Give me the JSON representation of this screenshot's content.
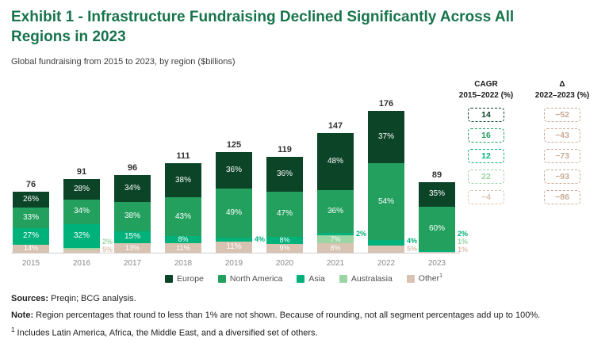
{
  "title": "Exhibit 1 - Infrastructure Fundraising Declined Significantly Across All Regions in 2023",
  "subtitle": "Global fundraising from 2015 to 2023, by region ($billions)",
  "colors": {
    "title": "#17744b",
    "regions": {
      "Europe": "#0c4427",
      "North America": "#23a05e",
      "Asia": "#00b17a",
      "Australasia": "#9cd4a4",
      "Other": "#d8c3b2"
    },
    "delta": "#c9ab97",
    "baseline": "#cfcfcf",
    "total_label": "#333333",
    "axis_label": "#8a8a8a"
  },
  "chart_data": {
    "type": "bar",
    "stacked": true,
    "title": "Global fundraising from 2015 to 2023, by region ($billions)",
    "unit": "$billions",
    "gridlines": false,
    "legend_position": "bottom",
    "categories": [
      "2015",
      "2016",
      "2017",
      "2018",
      "2019",
      "2020",
      "2021",
      "2022",
      "2023"
    ],
    "totals": [
      76,
      91,
      96,
      111,
      125,
      119,
      147,
      176,
      89
    ],
    "series": [
      {
        "name": "Europe",
        "pct_by_year": [
          26,
          28,
          34,
          38,
          36,
          36,
          48,
          37,
          35
        ]
      },
      {
        "name": "North America",
        "pct_by_year": [
          33,
          34,
          38,
          43,
          49,
          47,
          36,
          54,
          60
        ]
      },
      {
        "name": "Asia",
        "pct_by_year": [
          27,
          32,
          15,
          8,
          4,
          8,
          2,
          4,
          2
        ]
      },
      {
        "name": "Australasia",
        "pct_by_year": [
          0,
          2,
          0,
          0,
          0,
          0,
          7,
          0,
          1
        ]
      },
      {
        "name": "Other",
        "pct_by_year": [
          14,
          5,
          13,
          11,
          11,
          9,
          8,
          5,
          1
        ]
      }
    ],
    "bars": [
      {
        "year": "2015",
        "total": 76,
        "segments": [
          {
            "region": "Europe",
            "pct": 26,
            "inside": true
          },
          {
            "region": "North America",
            "pct": 33,
            "inside": true
          },
          {
            "region": "Asia",
            "pct": 27,
            "inside": true
          },
          {
            "region": "Other",
            "pct": 14,
            "inside": true
          }
        ]
      },
      {
        "year": "2016",
        "total": 91,
        "segments": [
          {
            "region": "Europe",
            "pct": 28,
            "inside": true
          },
          {
            "region": "North America",
            "pct": 34,
            "inside": true
          },
          {
            "region": "Asia",
            "pct": 32,
            "inside": true
          },
          {
            "region": "Australasia",
            "pct": 2,
            "inside": false
          },
          {
            "region": "Other",
            "pct": 5,
            "inside": false
          }
        ]
      },
      {
        "year": "2017",
        "total": 96,
        "segments": [
          {
            "region": "Europe",
            "pct": 34,
            "inside": true
          },
          {
            "region": "North America",
            "pct": 38,
            "inside": true
          },
          {
            "region": "Asia",
            "pct": 15,
            "inside": true
          },
          {
            "region": "Other",
            "pct": 13,
            "inside": true
          }
        ]
      },
      {
        "year": "2018",
        "total": 111,
        "segments": [
          {
            "region": "Europe",
            "pct": 38,
            "inside": true
          },
          {
            "region": "North America",
            "pct": 43,
            "inside": true
          },
          {
            "region": "Asia",
            "pct": 8,
            "inside": true
          },
          {
            "region": "Other",
            "pct": 11,
            "inside": true
          }
        ]
      },
      {
        "year": "2019",
        "total": 125,
        "segments": [
          {
            "region": "Europe",
            "pct": 36,
            "inside": true
          },
          {
            "region": "North America",
            "pct": 49,
            "inside": true
          },
          {
            "region": "Asia",
            "pct": 4,
            "inside": false
          },
          {
            "region": "Other",
            "pct": 11,
            "inside": true
          }
        ]
      },
      {
        "year": "2020",
        "total": 119,
        "segments": [
          {
            "region": "Europe",
            "pct": 36,
            "inside": true
          },
          {
            "region": "North America",
            "pct": 47,
            "inside": true
          },
          {
            "region": "Asia",
            "pct": 8,
            "inside": true
          },
          {
            "region": "Other",
            "pct": 9,
            "inside": true
          }
        ]
      },
      {
        "year": "2021",
        "total": 147,
        "segments": [
          {
            "region": "Europe",
            "pct": 48,
            "inside": true
          },
          {
            "region": "North America",
            "pct": 36,
            "inside": true
          },
          {
            "region": "Asia",
            "pct": 2,
            "inside": false
          },
          {
            "region": "Australasia",
            "pct": 7,
            "inside": true
          },
          {
            "region": "Other",
            "pct": 8,
            "inside": true
          }
        ]
      },
      {
        "year": "2022",
        "total": 176,
        "segments": [
          {
            "region": "Europe",
            "pct": 37,
            "inside": true
          },
          {
            "region": "North America",
            "pct": 54,
            "inside": true
          },
          {
            "region": "Asia",
            "pct": 4,
            "inside": false
          },
          {
            "region": "Other",
            "pct": 5,
            "inside": false
          }
        ]
      },
      {
        "year": "2023",
        "total": 89,
        "segments": [
          {
            "region": "Europe",
            "pct": 35,
            "inside": true
          },
          {
            "region": "North America",
            "pct": 60,
            "inside": true
          },
          {
            "region": "Asia",
            "pct": 2,
            "inside": false
          },
          {
            "region": "Australasia",
            "pct": 1,
            "inside": false
          },
          {
            "region": "Other",
            "pct": 1,
            "inside": false
          }
        ]
      }
    ]
  },
  "side_table": {
    "cagr_header_line1": "CAGR",
    "cagr_header_line2": "2015–2022 (%)",
    "delta_header_line1": "Δ",
    "delta_header_line2": "2022–2023 (%)",
    "rows": [
      {
        "region": "Europe",
        "cagr": "14",
        "delta": "−52"
      },
      {
        "region": "North America",
        "cagr": "16",
        "delta": "−43"
      },
      {
        "region": "Asia",
        "cagr": "12",
        "delta": "−73"
      },
      {
        "region": "Australasia",
        "cagr": "22",
        "delta": "−93"
      },
      {
        "region": "Other",
        "cagr": "−4",
        "delta": "−86"
      }
    ]
  },
  "legend": [
    {
      "label": "Europe",
      "region": "Europe"
    },
    {
      "label": "North America",
      "region": "North America"
    },
    {
      "label": "Asia",
      "region": "Asia"
    },
    {
      "label": "Australasia",
      "region": "Australasia"
    },
    {
      "label": "Other",
      "sup": "1",
      "region": "Other"
    }
  ],
  "footnotes": {
    "sources_label": "Sources:",
    "sources_text": "Preqin; BCG analysis.",
    "note_label": "Note:",
    "note_text": "Region percentages that round to less than 1% are not shown. Because of rounding, not all segment percentages add up to 100%.",
    "footnote1_sup": "1",
    "footnote1_text": "Includes Latin America, Africa, the Middle East, and a diversified set of others."
  }
}
